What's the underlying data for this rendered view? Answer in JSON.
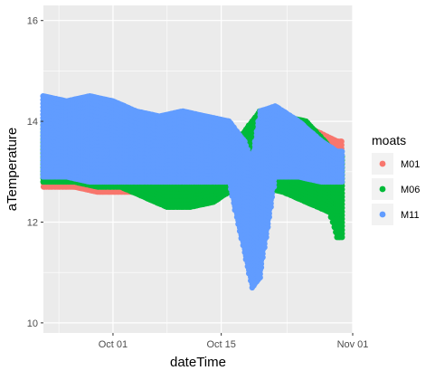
{
  "chart_data": {
    "type": "scatter",
    "xlabel": "dateTime",
    "ylabel": "aTemperature",
    "x_domain": [
      "2023-09-22",
      "2023-11-01"
    ],
    "x_ticks": [
      {
        "date": "2023-10-01",
        "label": "Oct 01"
      },
      {
        "date": "2023-10-15",
        "label": "Oct 15"
      },
      {
        "date": "2023-11-01",
        "label": "Nov 01"
      }
    ],
    "ylim": [
      9.8,
      16.3
    ],
    "y_ticks": [
      10,
      12,
      14,
      16
    ],
    "grid": true,
    "legend": {
      "title": "moats",
      "placement": "right"
    },
    "series": [
      {
        "name": "M01",
        "color": "#F8766D",
        "x_range": [
          "2023-09-22",
          "2023-10-30"
        ],
        "points": [
          {
            "x": "2023-09-22",
            "low": 12.7,
            "high": 13.9
          },
          {
            "x": "2023-09-26",
            "low": 12.7,
            "high": 13.8
          },
          {
            "x": "2023-09-29",
            "low": 12.6,
            "high": 13.8
          },
          {
            "x": "2023-10-02",
            "low": 12.6,
            "high": 13.7
          },
          {
            "x": "2023-10-05",
            "low": 12.6,
            "high": 13.7
          },
          {
            "x": "2023-10-08",
            "low": 12.6,
            "high": 13.6
          },
          {
            "x": "2023-10-11",
            "low": 12.6,
            "high": 13.6
          },
          {
            "x": "2023-10-14",
            "low": 12.6,
            "high": 13.6
          },
          {
            "x": "2023-10-17",
            "low": 12.8,
            "high": 13.5
          },
          {
            "x": "2023-10-20",
            "low": 12.8,
            "high": 14.1
          },
          {
            "x": "2023-10-23",
            "low": 12.8,
            "high": 14.0
          },
          {
            "x": "2023-10-26",
            "low": 12.9,
            "high": 13.9
          },
          {
            "x": "2023-10-30",
            "low": 12.9,
            "high": 13.6
          }
        ]
      },
      {
        "name": "M06",
        "color": "#00BA38",
        "x_range": [
          "2023-09-22",
          "2023-10-30"
        ],
        "points": [
          {
            "x": "2023-09-22",
            "low": 12.8,
            "high": 14.0
          },
          {
            "x": "2023-09-26",
            "low": 12.8,
            "high": 14.1
          },
          {
            "x": "2023-09-29",
            "low": 12.7,
            "high": 14.0
          },
          {
            "x": "2023-10-02",
            "low": 12.7,
            "high": 13.9
          },
          {
            "x": "2023-10-05",
            "low": 12.5,
            "high": 13.9
          },
          {
            "x": "2023-10-08",
            "low": 12.3,
            "high": 13.8
          },
          {
            "x": "2023-10-11",
            "low": 12.3,
            "high": 13.8
          },
          {
            "x": "2023-10-14",
            "low": 12.4,
            "high": 13.7
          },
          {
            "x": "2023-10-17",
            "low": 12.7,
            "high": 13.6
          },
          {
            "x": "2023-10-20",
            "low": 12.7,
            "high": 14.2
          },
          {
            "x": "2023-10-23",
            "low": 12.6,
            "high": 14.1
          },
          {
            "x": "2023-10-26",
            "low": 12.4,
            "high": 14.0
          },
          {
            "x": "2023-10-29",
            "low": 12.2,
            "high": 13.5
          },
          {
            "x": "2023-10-30",
            "low": 11.7,
            "high": 13.3
          }
        ]
      },
      {
        "name": "M11",
        "color": "#619CFF",
        "x_range": [
          "2023-09-22",
          "2023-10-30"
        ],
        "points": [
          {
            "x": "2023-09-22",
            "low": 12.9,
            "high": 14.5
          },
          {
            "x": "2023-09-25",
            "low": 12.9,
            "high": 14.4
          },
          {
            "x": "2023-09-28",
            "low": 12.8,
            "high": 14.5
          },
          {
            "x": "2023-10-01",
            "low": 12.8,
            "high": 14.4
          },
          {
            "x": "2023-10-04",
            "low": 12.8,
            "high": 14.2
          },
          {
            "x": "2023-10-07",
            "low": 12.8,
            "high": 14.1
          },
          {
            "x": "2023-10-10",
            "low": 12.8,
            "high": 14.2
          },
          {
            "x": "2023-10-13",
            "low": 12.8,
            "high": 14.1
          },
          {
            "x": "2023-10-16",
            "low": 12.8,
            "high": 14.0
          },
          {
            "x": "2023-10-18",
            "low": 11.4,
            "high": 13.6
          },
          {
            "x": "2023-10-19",
            "low": 10.7,
            "high": 13.2
          },
          {
            "x": "2023-10-20",
            "low": 10.9,
            "high": 14.2
          },
          {
            "x": "2023-10-22",
            "low": 12.9,
            "high": 14.3
          },
          {
            "x": "2023-10-25",
            "low": 12.9,
            "high": 14.0
          },
          {
            "x": "2023-10-28",
            "low": 12.8,
            "high": 13.6
          },
          {
            "x": "2023-10-30",
            "low": 12.8,
            "high": 13.4
          }
        ]
      }
    ]
  }
}
